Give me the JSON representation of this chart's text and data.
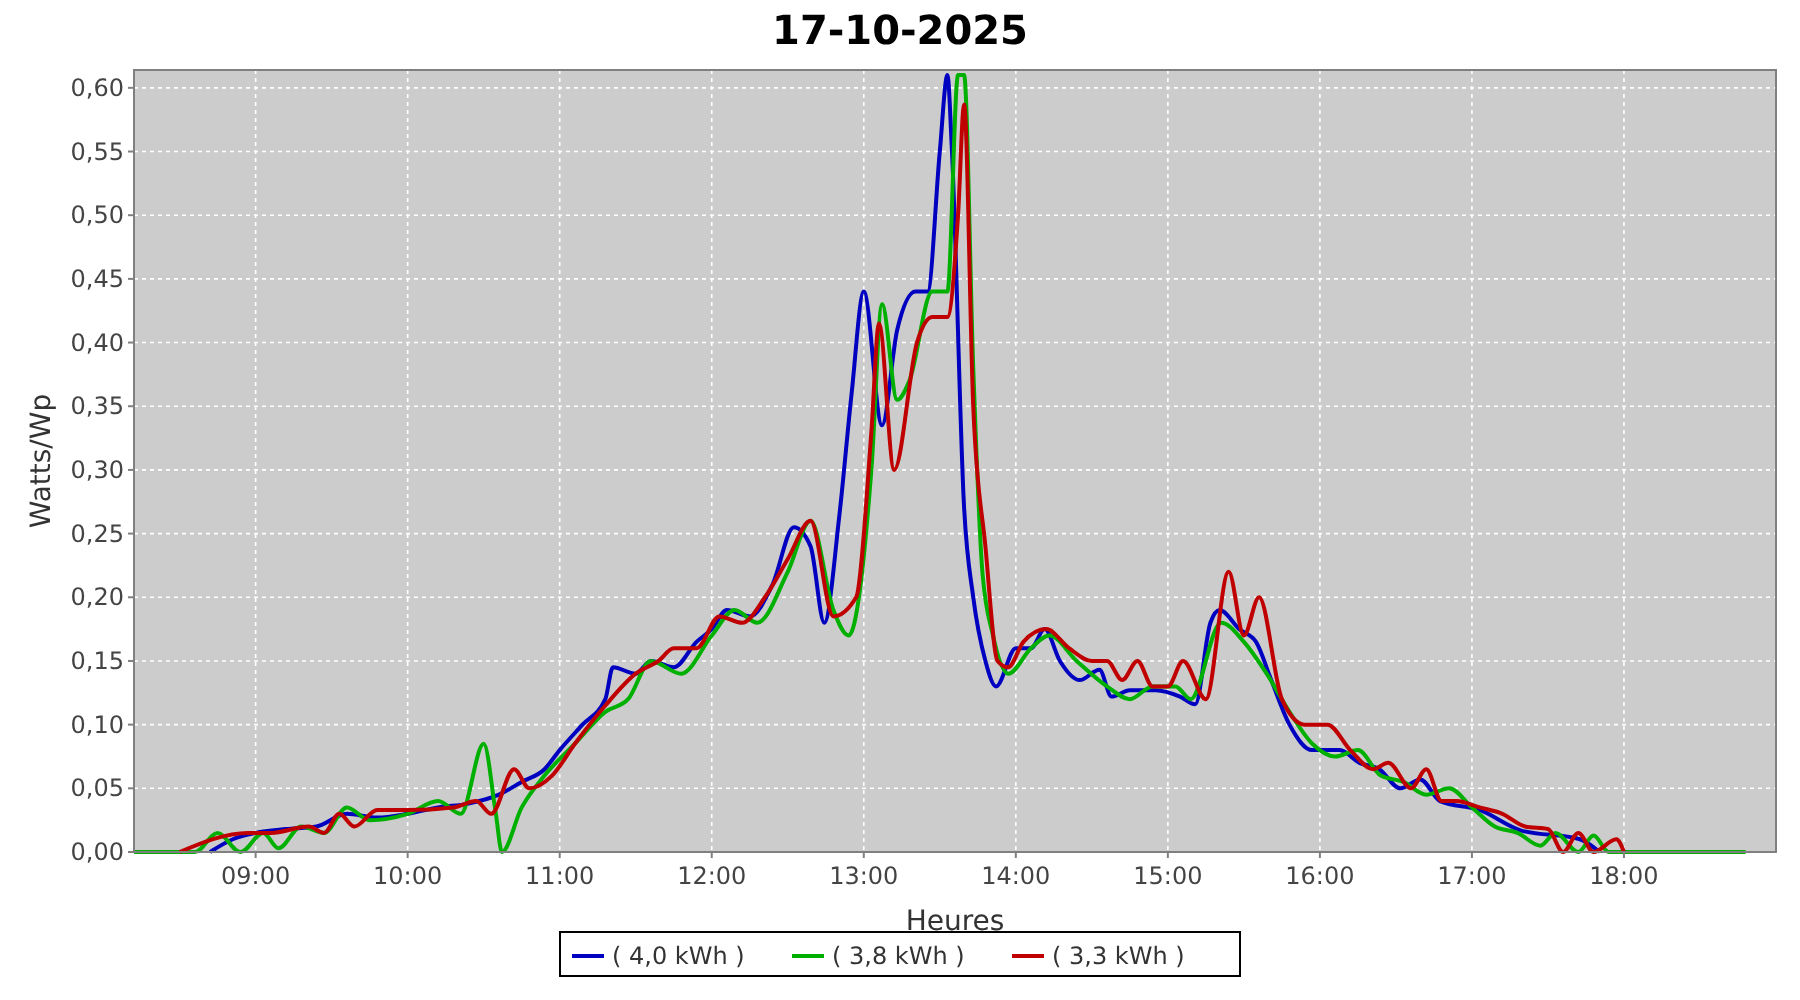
{
  "chart_data": {
    "type": "line",
    "title": "17-10-2025",
    "xlabel": "Heures",
    "ylabel": "Watts/Wp",
    "xlim": [
      8.2,
      19.0
    ],
    "ylim": [
      0,
      0.614
    ],
    "xticks": [
      {
        "value": 9,
        "label": "09:00"
      },
      {
        "value": 10,
        "label": "10:00"
      },
      {
        "value": 11,
        "label": "11:00"
      },
      {
        "value": 12,
        "label": "12:00"
      },
      {
        "value": 13,
        "label": "13:00"
      },
      {
        "value": 14,
        "label": "14:00"
      },
      {
        "value": 15,
        "label": "15:00"
      },
      {
        "value": 16,
        "label": "16:00"
      },
      {
        "value": 17,
        "label": "17:00"
      },
      {
        "value": 18,
        "label": "18:00"
      }
    ],
    "yticks": [
      {
        "value": 0,
        "label": "0,00"
      },
      {
        "value": 0.05,
        "label": "0,05"
      },
      {
        "value": 0.1,
        "label": "0,10"
      },
      {
        "value": 0.15,
        "label": "0,15"
      },
      {
        "value": 0.2,
        "label": "0,20"
      },
      {
        "value": 0.25,
        "label": "0,25"
      },
      {
        "value": 0.3,
        "label": "0,30"
      },
      {
        "value": 0.35,
        "label": "0,35"
      },
      {
        "value": 0.4,
        "label": "0,40"
      },
      {
        "value": 0.45,
        "label": "0,45"
      },
      {
        "value": 0.5,
        "label": "0,50"
      },
      {
        "value": 0.55,
        "label": "0,55"
      },
      {
        "value": 0.6,
        "label": "0,60"
      }
    ],
    "grid": true,
    "legend": "bottom",
    "marker": "none",
    "line_style": "solid",
    "series": [
      {
        "name": "( 4,0 kWh )",
        "color": "#0000c0",
        "x": [
          8.7,
          8.85,
          9.0,
          9.2,
          9.4,
          9.6,
          9.8,
          10.0,
          10.2,
          10.4,
          10.6,
          10.75,
          10.9,
          11.0,
          11.15,
          11.3,
          11.35,
          11.5,
          11.6,
          11.75,
          11.9,
          12.0,
          12.1,
          12.25,
          12.4,
          12.54,
          12.65,
          12.74,
          12.84,
          12.92,
          13.0,
          13.12,
          13.22,
          13.34,
          13.42,
          13.5,
          13.55,
          13.58,
          13.66,
          13.72,
          13.8,
          13.87,
          14.0,
          14.1,
          14.19,
          14.29,
          14.42,
          14.55,
          14.63,
          14.75,
          14.92,
          15.08,
          15.18,
          15.28,
          15.34,
          15.47,
          15.58,
          15.68,
          15.8,
          15.95,
          16.13,
          16.26,
          16.39,
          16.53,
          16.66,
          16.79,
          17.05,
          17.32,
          17.71,
          17.84
        ],
        "values": [
          0,
          0.01,
          0.015,
          0.018,
          0.02,
          0.03,
          0.027,
          0.03,
          0.035,
          0.038,
          0.045,
          0.055,
          0.065,
          0.08,
          0.1,
          0.12,
          0.145,
          0.14,
          0.15,
          0.145,
          0.165,
          0.175,
          0.19,
          0.185,
          0.21,
          0.255,
          0.24,
          0.18,
          0.265,
          0.36,
          0.44,
          0.335,
          0.41,
          0.44,
          0.44,
          0.55,
          0.61,
          0.55,
          0.27,
          0.2,
          0.15,
          0.13,
          0.16,
          0.16,
          0.175,
          0.15,
          0.135,
          0.143,
          0.122,
          0.127,
          0.127,
          0.122,
          0.116,
          0.18,
          0.19,
          0.175,
          0.165,
          0.135,
          0.1,
          0.08,
          0.08,
          0.07,
          0.065,
          0.05,
          0.057,
          0.04,
          0.033,
          0.017,
          0.01,
          0
        ]
      },
      {
        "name": "( 3,8 kWh )",
        "color": "#00b000",
        "x": [
          8.2,
          8.6,
          8.75,
          8.9,
          9.05,
          9.15,
          9.3,
          9.45,
          9.6,
          9.75,
          10.0,
          10.2,
          10.35,
          10.5,
          10.58,
          10.62,
          10.75,
          10.9,
          11.1,
          11.3,
          11.45,
          11.6,
          11.8,
          12.0,
          12.15,
          12.3,
          12.5,
          12.65,
          12.8,
          12.9,
          13.05,
          13.12,
          13.22,
          13.3,
          13.45,
          13.55,
          13.62,
          13.66,
          13.72,
          13.78,
          13.85,
          13.95,
          14.1,
          14.22,
          14.4,
          14.6,
          14.75,
          14.9,
          15.05,
          15.15,
          15.35,
          15.5,
          15.65,
          15.8,
          15.95,
          16.1,
          16.25,
          16.4,
          16.55,
          16.7,
          16.85,
          17.0,
          17.15,
          17.3,
          17.45,
          17.55,
          17.7,
          17.8,
          17.9,
          18.8
        ],
        "values": [
          0,
          0,
          0.015,
          0,
          0.015,
          0.003,
          0.02,
          0.015,
          0.035,
          0.025,
          0.03,
          0.04,
          0.03,
          0.085,
          0.03,
          0,
          0.035,
          0.06,
          0.085,
          0.11,
          0.12,
          0.15,
          0.14,
          0.17,
          0.19,
          0.18,
          0.22,
          0.26,
          0.19,
          0.17,
          0.3,
          0.43,
          0.355,
          0.37,
          0.44,
          0.44,
          0.61,
          0.61,
          0.38,
          0.22,
          0.17,
          0.14,
          0.16,
          0.17,
          0.15,
          0.13,
          0.12,
          0.13,
          0.13,
          0.12,
          0.18,
          0.165,
          0.14,
          0.11,
          0.085,
          0.075,
          0.08,
          0.06,
          0.055,
          0.045,
          0.05,
          0.035,
          0.02,
          0.015,
          0.005,
          0.015,
          0,
          0.013,
          0,
          0
        ]
      },
      {
        "name": "( 3,3 kWh )",
        "color": "#c00000",
        "x": [
          8.5,
          8.95,
          9.1,
          9.35,
          9.45,
          9.55,
          9.65,
          9.8,
          10.0,
          10.3,
          10.45,
          10.55,
          10.7,
          10.8,
          10.95,
          11.1,
          11.3,
          11.5,
          11.65,
          11.75,
          11.9,
          12.05,
          12.2,
          12.35,
          12.5,
          12.65,
          12.8,
          12.95,
          13.05,
          13.1,
          13.2,
          13.35,
          13.45,
          13.55,
          13.62,
          13.66,
          13.72,
          13.8,
          13.88,
          13.95,
          14.05,
          14.2,
          14.35,
          14.5,
          14.6,
          14.7,
          14.8,
          14.9,
          15.0,
          15.1,
          15.25,
          15.4,
          15.5,
          15.6,
          15.75,
          15.9,
          16.05,
          16.2,
          16.35,
          16.45,
          16.6,
          16.7,
          16.8,
          16.9,
          17.05,
          17.2,
          17.35,
          17.5,
          17.6,
          17.7,
          17.8,
          17.95,
          18.0
        ],
        "values": [
          0,
          0.015,
          0.015,
          0.02,
          0.015,
          0.03,
          0.02,
          0.033,
          0.033,
          0.035,
          0.04,
          0.03,
          0.065,
          0.05,
          0.06,
          0.085,
          0.115,
          0.14,
          0.15,
          0.16,
          0.16,
          0.185,
          0.18,
          0.2,
          0.23,
          0.26,
          0.185,
          0.2,
          0.33,
          0.415,
          0.3,
          0.4,
          0.42,
          0.42,
          0.5,
          0.587,
          0.35,
          0.24,
          0.15,
          0.145,
          0.165,
          0.175,
          0.16,
          0.15,
          0.15,
          0.135,
          0.15,
          0.13,
          0.13,
          0.15,
          0.12,
          0.22,
          0.17,
          0.2,
          0.12,
          0.1,
          0.1,
          0.08,
          0.065,
          0.07,
          0.05,
          0.065,
          0.04,
          0.04,
          0.035,
          0.03,
          0.02,
          0.018,
          0,
          0.015,
          0,
          0.01,
          0
        ]
      }
    ]
  }
}
